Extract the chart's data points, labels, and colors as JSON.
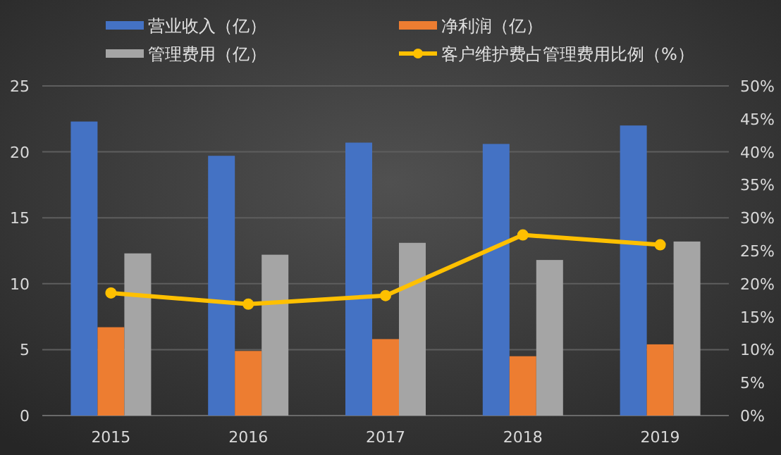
{
  "chart_data": {
    "type": "bar",
    "categories": [
      "2015",
      "2016",
      "2017",
      "2018",
      "2019"
    ],
    "series": [
      {
        "name": "营业收入（亿）",
        "color": "#4472c4",
        "values": [
          22.3,
          19.7,
          20.7,
          20.6,
          22.0
        ]
      },
      {
        "name": "净利润（亿）",
        "color": "#ed7d31",
        "values": [
          6.7,
          4.9,
          5.8,
          4.5,
          5.4
        ]
      },
      {
        "name": "管理费用（亿）",
        "color": "#a5a5a5",
        "values": [
          12.3,
          12.2,
          13.1,
          11.8,
          13.2
        ]
      },
      {
        "name": "客户维护费占管理费用比例（%）",
        "color": "#ffc000",
        "type": "line",
        "axis": "y2",
        "marker": "circle",
        "values": [
          18.6,
          16.9,
          18.2,
          27.4,
          25.9
        ]
      }
    ],
    "ylim": [
      0,
      25
    ],
    "yticks": [
      0,
      5,
      10,
      15,
      20,
      25
    ],
    "y2lim": [
      0,
      50
    ],
    "y2ticks": [
      {
        "value": 0,
        "label": "0%"
      },
      {
        "value": 5,
        "label": "5%"
      },
      {
        "value": 10,
        "label": "10%"
      },
      {
        "value": 15,
        "label": "15%"
      },
      {
        "value": 20,
        "label": "20%"
      },
      {
        "value": 25,
        "label": "25%"
      },
      {
        "value": 30,
        "label": "30%"
      },
      {
        "value": 35,
        "label": "35%"
      },
      {
        "value": 40,
        "label": "40%"
      },
      {
        "value": 45,
        "label": "45%"
      },
      {
        "value": 50,
        "label": "50%"
      }
    ],
    "grid": "y",
    "legend": "top"
  }
}
